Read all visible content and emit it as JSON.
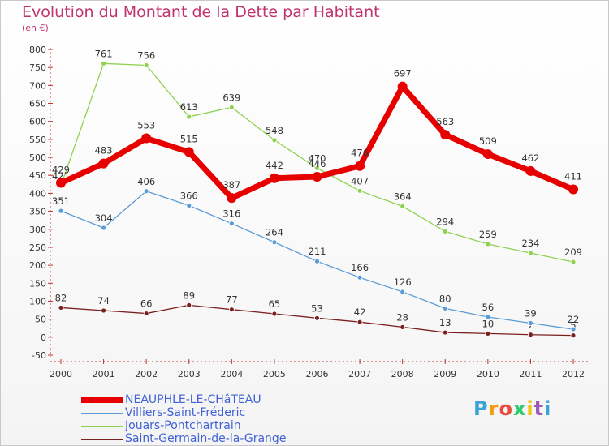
{
  "title": "Evolution du Montant de la Dette par Habitant",
  "subtitle": "(en €)",
  "logo": "Proxiti",
  "chart_data": {
    "type": "line",
    "title": "Evolution du Montant de la Dette par Habitant",
    "subtitle": "(en €)",
    "x": [
      "2000",
      "2001",
      "2002",
      "2003",
      "2004",
      "2005",
      "2006",
      "2007",
      "2008",
      "2009",
      "2010",
      "2011",
      "2012"
    ],
    "yticks": [
      -50,
      0,
      50,
      100,
      150,
      200,
      250,
      300,
      350,
      400,
      450,
      500,
      550,
      600,
      650,
      700,
      750,
      800
    ],
    "ylim": [
      -50,
      800
    ],
    "grid": false,
    "legend_position": "bottom-left",
    "series": [
      {
        "name": "NEAUPHLE-LE-CHâTEAU",
        "color": "#e60000",
        "width": 7,
        "values": [
          429,
          483,
          553,
          515,
          387,
          442,
          446,
          476,
          697,
          563,
          509,
          462,
          411
        ],
        "labels": [
          "429",
          "483",
          "553",
          "515",
          "387",
          "442",
          "446",
          "476",
          "697",
          "563",
          "509",
          "462",
          "411"
        ]
      },
      {
        "name": "Villiers-Saint-Fréderic",
        "color": "#5b9bd5",
        "width": 1.3,
        "values": [
          351,
          304,
          406,
          366,
          316,
          264,
          211,
          166,
          126,
          80,
          56,
          39,
          22
        ],
        "labels": [
          "351",
          "304",
          "406",
          "366",
          "316",
          "264",
          "211",
          "166",
          "126",
          "80",
          "56",
          "39",
          "22"
        ]
      },
      {
        "name": "Jouars-Pontchartrain",
        "color": "#8fd14f",
        "width": 1.3,
        "values": [
          421,
          761,
          756,
          613,
          639,
          548,
          470,
          407,
          364,
          294,
          259,
          234,
          209
        ],
        "labels": [
          "421",
          "761",
          "756",
          "613",
          "639",
          "548",
          "470",
          "407",
          "364",
          "294",
          "259",
          "234",
          "209"
        ]
      },
      {
        "name": "Saint-Germain-de-la-Grange",
        "color": "#7b2020",
        "width": 1.3,
        "values": [
          82,
          74,
          66,
          89,
          77,
          65,
          53,
          42,
          28,
          13,
          10,
          7,
          5
        ],
        "labels": [
          "82",
          "74",
          "66",
          "89",
          "77",
          "65",
          "53",
          "42",
          "28",
          "13",
          "10",
          "7",
          "5"
        ]
      }
    ]
  }
}
